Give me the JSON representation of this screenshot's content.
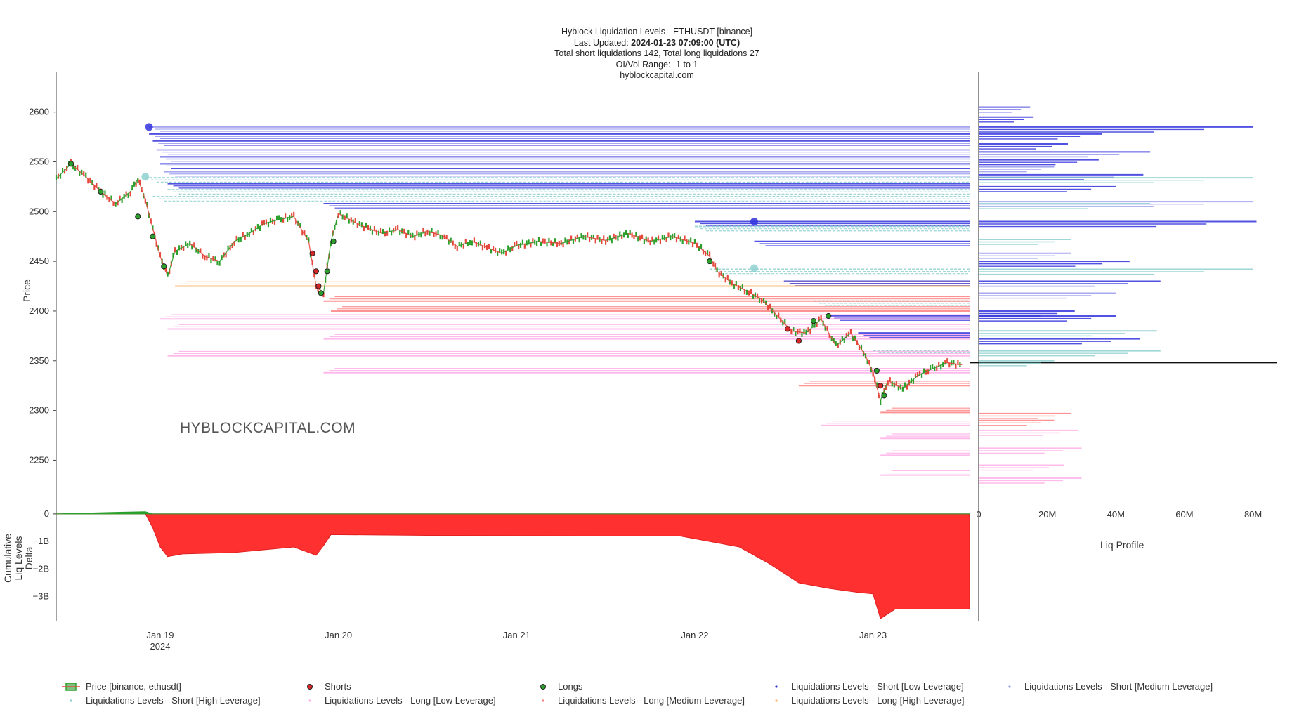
{
  "title": {
    "line1": "Hyblock Liquidation Levels - ETHUSDT [binance]",
    "line2_prefix": "Last Updated: ",
    "line2_value": "2024-01-23 07:09:00 (UTC)",
    "line3": "Total short liquidations 142, Total long liquidations 27",
    "line4": "OI/Vol Range: -1 to 1",
    "line5": "hyblockcapital.com"
  },
  "watermark": "HYBLOCKCAPITAL.COM",
  "axes": {
    "price_title": "Price",
    "delta_title_lines": [
      "Cumulative",
      "Liq Levels",
      "Delta"
    ],
    "profile_title": "Liq Profile"
  },
  "colors": {
    "price_up": "#2ca02c",
    "price_down": "#e5483c",
    "short_low": "#3333dd",
    "short_medium": "#9a9aee",
    "short_high": "#8fd0d0",
    "long_low": "#ffb0e8",
    "long_medium": "#ff8080",
    "long_high": "#ffb060",
    "delta_fill": "#ff3030",
    "delta_pos": "#2ca02c"
  },
  "legend": [
    {
      "label": "Price [binance, ethusdt]",
      "icon": "candlestick-icon",
      "color": "#2ca02c"
    },
    {
      "label": "Shorts",
      "icon": "dot-icon",
      "color": "#d62728"
    },
    {
      "label": "Longs",
      "icon": "dot-icon",
      "color": "#2ca02c"
    },
    {
      "label": "Liquidations Levels - Short [Low Leverage]",
      "icon": "dot-icon",
      "color": "#3333dd"
    },
    {
      "label": "Liquidations Levels - Short [Medium Leverage]",
      "icon": "dot-icon",
      "color": "#9a9aee"
    },
    {
      "label": "Liquidations Levels - Short [High Leverage]",
      "icon": "dot-icon",
      "color": "#8fd0d0"
    },
    {
      "label": "Liquidations Levels - Long [Low Leverage]",
      "icon": "dot-icon",
      "color": "#ffb0e8"
    },
    {
      "label": "Liquidations Levels - Long [Medium Leverage]",
      "icon": "dot-icon",
      "color": "#ff8080"
    },
    {
      "label": "Liquidations Levels - Long [High Leverage]",
      "icon": "dot-icon",
      "color": "#ffb060"
    }
  ],
  "chart_data": [
    {
      "type": "candlestick",
      "name": "Price [binance, ethusdt]",
      "ylabel": "Price",
      "ylim": [
        2215,
        2640
      ],
      "yticks": [
        2250,
        2300,
        2350,
        2400,
        2450,
        2500,
        2550,
        2600
      ],
      "xlim": [
        "2024-01-18 10:00",
        "2024-01-23 13:00"
      ],
      "xticks": [
        {
          "date": "2024-01-19 00:00",
          "label": "Jan 19",
          "sublabel": "2024"
        },
        {
          "date": "2024-01-20 00:00",
          "label": "Jan 20",
          "sublabel": ""
        },
        {
          "date": "2024-01-21 00:00",
          "label": "Jan 21",
          "sublabel": ""
        },
        {
          "date": "2024-01-22 00:00",
          "label": "Jan 22",
          "sublabel": ""
        },
        {
          "date": "2024-01-23 00:00",
          "label": "Jan 23",
          "sublabel": ""
        }
      ],
      "current_price": 2348,
      "price_path": [
        [
          "2024-01-18 10:00",
          2533
        ],
        [
          "2024-01-18 12:00",
          2548
        ],
        [
          "2024-01-18 14:00",
          2535
        ],
        [
          "2024-01-18 16:00",
          2520
        ],
        [
          "2024-01-18 18:00",
          2508
        ],
        [
          "2024-01-18 20:00",
          2520
        ],
        [
          "2024-01-18 21:00",
          2533
        ],
        [
          "2024-01-18 22:00",
          2512
        ],
        [
          "2024-01-18 23:00",
          2483
        ],
        [
          "2024-01-19 00:00",
          2455
        ],
        [
          "2024-01-19 01:00",
          2435
        ],
        [
          "2024-01-19 02:00",
          2460
        ],
        [
          "2024-01-19 04:00",
          2468
        ],
        [
          "2024-01-19 06:00",
          2455
        ],
        [
          "2024-01-19 08:00",
          2450
        ],
        [
          "2024-01-19 10:00",
          2470
        ],
        [
          "2024-01-19 12:00",
          2478
        ],
        [
          "2024-01-19 14:00",
          2488
        ],
        [
          "2024-01-19 16:00",
          2492
        ],
        [
          "2024-01-19 18:00",
          2495
        ],
        [
          "2024-01-19 20:00",
          2470
        ],
        [
          "2024-01-19 21:00",
          2425
        ],
        [
          "2024-01-19 22:00",
          2418
        ],
        [
          "2024-01-19 23:00",
          2470
        ],
        [
          "2024-01-20 00:00",
          2498
        ],
        [
          "2024-01-20 02:00",
          2490
        ],
        [
          "2024-01-20 04:00",
          2483
        ],
        [
          "2024-01-20 06:00",
          2478
        ],
        [
          "2024-01-20 08:00",
          2482
        ],
        [
          "2024-01-20 10:00",
          2475
        ],
        [
          "2024-01-20 12:00",
          2480
        ],
        [
          "2024-01-20 14:00",
          2476
        ],
        [
          "2024-01-20 16:00",
          2465
        ],
        [
          "2024-01-20 18:00",
          2470
        ],
        [
          "2024-01-20 20:00",
          2464
        ],
        [
          "2024-01-20 22:00",
          2458
        ],
        [
          "2024-01-21 00:00",
          2466
        ],
        [
          "2024-01-21 03:00",
          2470
        ],
        [
          "2024-01-21 06:00",
          2468
        ],
        [
          "2024-01-21 09:00",
          2475
        ],
        [
          "2024-01-21 12:00",
          2471
        ],
        [
          "2024-01-21 15:00",
          2478
        ],
        [
          "2024-01-21 18:00",
          2470
        ],
        [
          "2024-01-21 21:00",
          2475
        ],
        [
          "2024-01-22 00:00",
          2468
        ],
        [
          "2024-01-22 02:00",
          2455
        ],
        [
          "2024-01-22 03:00",
          2440
        ],
        [
          "2024-01-22 05:00",
          2428
        ],
        [
          "2024-01-22 07:00",
          2420
        ],
        [
          "2024-01-22 09:00",
          2412
        ],
        [
          "2024-01-22 11:00",
          2396
        ],
        [
          "2024-01-22 13:00",
          2380
        ],
        [
          "2024-01-22 15:00",
          2378
        ],
        [
          "2024-01-22 17:00",
          2392
        ],
        [
          "2024-01-22 19:00",
          2365
        ],
        [
          "2024-01-22 21:00",
          2378
        ],
        [
          "2024-01-22 23:00",
          2355
        ],
        [
          "2024-01-23 00:00",
          2338
        ],
        [
          "2024-01-23 01:00",
          2310
        ],
        [
          "2024-01-23 02:00",
          2330
        ],
        [
          "2024-01-23 04:00",
          2322
        ],
        [
          "2024-01-23 06:00",
          2335
        ],
        [
          "2024-01-23 08:00",
          2342
        ],
        [
          "2024-01-23 10:00",
          2348
        ],
        [
          "2024-01-23 12:00",
          2346
        ]
      ],
      "shorts": [
        [
          "2024-01-19 20:30",
          2458
        ],
        [
          "2024-01-19 21:00",
          2440
        ],
        [
          "2024-01-19 21:20",
          2425
        ],
        [
          "2024-01-22 12:30",
          2382
        ],
        [
          "2024-01-22 14:00",
          2370
        ],
        [
          "2024-01-23 01:00",
          2325
        ]
      ],
      "longs": [
        [
          "2024-01-18 12:00",
          2548
        ],
        [
          "2024-01-18 16:00",
          2520
        ],
        [
          "2024-01-18 21:00",
          2495
        ],
        [
          "2024-01-18 23:00",
          2475
        ],
        [
          "2024-01-19 00:30",
          2445
        ],
        [
          "2024-01-19 21:40",
          2418
        ],
        [
          "2024-01-19 22:30",
          2440
        ],
        [
          "2024-01-19 23:20",
          2470
        ],
        [
          "2024-01-22 02:00",
          2450
        ],
        [
          "2024-01-22 16:00",
          2390
        ],
        [
          "2024-01-22 18:00",
          2395
        ],
        [
          "2024-01-23 00:30",
          2340
        ],
        [
          "2024-01-23 01:30",
          2315
        ]
      ],
      "short_levels": [
        {
          "price": 2585,
          "start": "2024-01-18 22:30",
          "leverage": "medium"
        },
        {
          "price": 2578,
          "start": "2024-01-18 22:30",
          "leverage": "low"
        },
        {
          "price": 2571,
          "start": "2024-01-18 23:00",
          "leverage": "low"
        },
        {
          "price": 2562,
          "start": "2024-01-18 23:30",
          "leverage": "medium"
        },
        {
          "price": 2555,
          "start": "2024-01-19 00:00",
          "leverage": "low"
        },
        {
          "price": 2548,
          "start": "2024-01-19 00:00",
          "leverage": "low"
        },
        {
          "price": 2540,
          "start": "2024-01-19 00:30",
          "leverage": "medium"
        },
        {
          "price": 2534,
          "start": "2024-01-18 22:00",
          "leverage": "high"
        },
        {
          "price": 2528,
          "start": "2024-01-19 01:00",
          "leverage": "low"
        },
        {
          "price": 2522,
          "start": "2024-01-19 01:00",
          "leverage": "high"
        },
        {
          "price": 2515,
          "start": "2024-01-18 23:00",
          "leverage": "high"
        },
        {
          "price": 2508,
          "start": "2024-01-19 22:00",
          "leverage": "low"
        },
        {
          "price": 2490,
          "start": "2024-01-22 00:00",
          "leverage": "low"
        },
        {
          "price": 2485,
          "start": "2024-01-22 00:00",
          "leverage": "high"
        },
        {
          "price": 2470,
          "start": "2024-01-22 08:00",
          "leverage": "low"
        },
        {
          "price": 2442,
          "start": "2024-01-22 02:00",
          "leverage": "high"
        },
        {
          "price": 2430,
          "start": "2024-01-22 12:00",
          "leverage": "low"
        },
        {
          "price": 2410,
          "start": "2024-01-22 16:00",
          "leverage": "high"
        },
        {
          "price": 2395,
          "start": "2024-01-22 18:00",
          "leverage": "low"
        },
        {
          "price": 2378,
          "start": "2024-01-22 22:00",
          "leverage": "low"
        },
        {
          "price": 2360,
          "start": "2024-01-23 00:00",
          "leverage": "high"
        }
      ],
      "long_levels": [
        {
          "price": 2425,
          "start": "2024-01-19 02:00",
          "leverage": "high"
        },
        {
          "price": 2410,
          "start": "2024-01-19 22:00",
          "leverage": "medium"
        },
        {
          "price": 2400,
          "start": "2024-01-19 23:00",
          "leverage": "medium"
        },
        {
          "price": 2392,
          "start": "2024-01-19 00:00",
          "leverage": "low"
        },
        {
          "price": 2382,
          "start": "2024-01-19 01:00",
          "leverage": "low"
        },
        {
          "price": 2372,
          "start": "2024-01-19 22:00",
          "leverage": "low"
        },
        {
          "price": 2355,
          "start": "2024-01-19 01:00",
          "leverage": "low"
        },
        {
          "price": 2338,
          "start": "2024-01-19 22:00",
          "leverage": "low"
        },
        {
          "price": 2325,
          "start": "2024-01-22 14:00",
          "leverage": "medium"
        },
        {
          "price": 2298,
          "start": "2024-01-23 01:00",
          "leverage": "medium"
        },
        {
          "price": 2285,
          "start": "2024-01-22 17:00",
          "leverage": "low"
        },
        {
          "price": 2272,
          "start": "2024-01-23 01:00",
          "leverage": "low"
        },
        {
          "price": 2255,
          "start": "2024-01-23 01:00",
          "leverage": "low"
        },
        {
          "price": 2235,
          "start": "2024-01-23 01:00",
          "leverage": "low"
        }
      ]
    },
    {
      "type": "area",
      "name": "Cumulative Liq Levels Delta",
      "ylabel": "Cumulative Liq Levels Delta",
      "ylim": [
        -3.9,
        0.1
      ],
      "yticks": [
        {
          "v": 0,
          "label": "0"
        },
        {
          "v": -1,
          "label": "−1B"
        },
        {
          "v": -2,
          "label": "−2B"
        },
        {
          "v": -3,
          "label": "−3B"
        }
      ],
      "unit": "B",
      "points": [
        [
          "2024-01-18 10:00",
          0
        ],
        [
          "2024-01-18 18:00",
          0.06
        ],
        [
          "2024-01-18 22:00",
          0.08
        ],
        [
          "2024-01-18 23:00",
          -0.5
        ],
        [
          "2024-01-19 00:00",
          -1.2
        ],
        [
          "2024-01-19 01:00",
          -1.55
        ],
        [
          "2024-01-19 03:00",
          -1.45
        ],
        [
          "2024-01-19 10:00",
          -1.4
        ],
        [
          "2024-01-19 18:00",
          -1.2
        ],
        [
          "2024-01-19 21:00",
          -1.5
        ],
        [
          "2024-01-19 22:00",
          -1.15
        ],
        [
          "2024-01-19 23:00",
          -0.75
        ],
        [
          "2024-01-20 12:00",
          -0.78
        ],
        [
          "2024-01-21 12:00",
          -0.8
        ],
        [
          "2024-01-21 22:00",
          -0.8
        ],
        [
          "2024-01-22 02:00",
          -1.0
        ],
        [
          "2024-01-22 06:00",
          -1.2
        ],
        [
          "2024-01-22 10:00",
          -1.8
        ],
        [
          "2024-01-22 14:00",
          -2.5
        ],
        [
          "2024-01-22 18:00",
          -2.7
        ],
        [
          "2024-01-22 22:00",
          -2.85
        ],
        [
          "2024-01-23 00:00",
          -2.9
        ],
        [
          "2024-01-23 01:00",
          -3.8
        ],
        [
          "2024-01-23 03:00",
          -3.45
        ],
        [
          "2024-01-23 13:00",
          -3.45
        ]
      ]
    },
    {
      "type": "bar",
      "orientation": "horizontal",
      "name": "Liq Profile",
      "xlabel": "Liq Profile",
      "xlim": [
        0,
        85
      ],
      "xticks": [
        {
          "v": 0,
          "label": "0"
        },
        {
          "v": 20,
          "label": "20M"
        },
        {
          "v": 40,
          "label": "40M"
        },
        {
          "v": 60,
          "label": "60M"
        },
        {
          "v": 80,
          "label": "80M"
        }
      ],
      "unit": "M",
      "bars": [
        {
          "price": 2605,
          "value": 15,
          "leverage": "low"
        },
        {
          "price": 2595,
          "value": 16,
          "leverage": "low"
        },
        {
          "price": 2585,
          "value": 80,
          "leverage": "low"
        },
        {
          "price": 2578,
          "value": 36,
          "leverage": "low"
        },
        {
          "price": 2568,
          "value": 26,
          "leverage": "low"
        },
        {
          "price": 2560,
          "value": 50,
          "leverage": "low"
        },
        {
          "price": 2552,
          "value": 35,
          "leverage": "low"
        },
        {
          "price": 2545,
          "value": 22,
          "leverage": "medium"
        },
        {
          "price": 2537,
          "value": 48,
          "leverage": "low"
        },
        {
          "price": 2534,
          "value": 80,
          "leverage": "high"
        },
        {
          "price": 2525,
          "value": 40,
          "leverage": "low"
        },
        {
          "price": 2510,
          "value": 80,
          "leverage": "medium"
        },
        {
          "price": 2508,
          "value": 50,
          "leverage": "high"
        },
        {
          "price": 2490,
          "value": 81,
          "leverage": "low"
        },
        {
          "price": 2472,
          "value": 27,
          "leverage": "high"
        },
        {
          "price": 2458,
          "value": 27,
          "leverage": "medium"
        },
        {
          "price": 2450,
          "value": 44,
          "leverage": "low"
        },
        {
          "price": 2442,
          "value": 80,
          "leverage": "high"
        },
        {
          "price": 2430,
          "value": 53,
          "leverage": "low"
        },
        {
          "price": 2418,
          "value": 40,
          "leverage": "medium"
        },
        {
          "price": 2400,
          "value": 28,
          "leverage": "low"
        },
        {
          "price": 2395,
          "value": 40,
          "leverage": "low"
        },
        {
          "price": 2380,
          "value": 52,
          "leverage": "high"
        },
        {
          "price": 2372,
          "value": 47,
          "leverage": "low"
        },
        {
          "price": 2360,
          "value": 53,
          "leverage": "high"
        },
        {
          "price": 2350,
          "value": 22,
          "leverage": "high"
        },
        {
          "price": 2297,
          "value": 27,
          "leverage": "long_medium"
        },
        {
          "price": 2290,
          "value": 22,
          "leverage": "long_medium"
        },
        {
          "price": 2280,
          "value": 29,
          "leverage": "long_low"
        },
        {
          "price": 2262,
          "value": 30,
          "leverage": "long_low"
        },
        {
          "price": 2245,
          "value": 25,
          "leverage": "long_low"
        },
        {
          "price": 2232,
          "value": 30,
          "leverage": "long_low"
        }
      ]
    }
  ]
}
